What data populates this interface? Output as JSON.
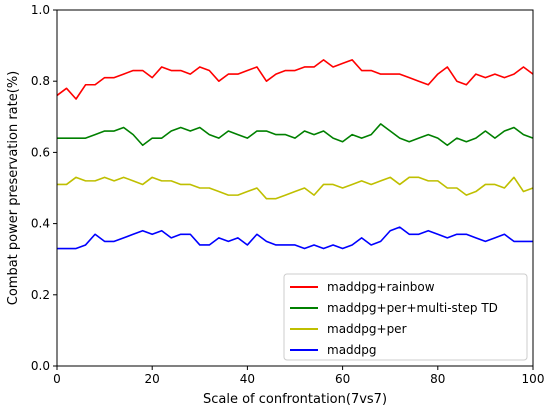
{
  "chart_data": {
    "type": "line",
    "title": "",
    "xlabel": "Scale of confrontation(7vs7)",
    "ylabel": "Combat power preservation rate(%)",
    "xlim": [
      0,
      100
    ],
    "ylim": [
      0,
      1
    ],
    "x_ticks": [
      "0",
      "20",
      "40",
      "60",
      "80",
      "100"
    ],
    "y_ticks": [
      "0.0",
      "0.2",
      "0.4",
      "0.6",
      "0.8",
      "1.0"
    ],
    "grid": false,
    "legend_position": "lower-right",
    "x": [
      0,
      2,
      4,
      6,
      8,
      10,
      12,
      14,
      16,
      18,
      20,
      22,
      24,
      26,
      28,
      30,
      32,
      34,
      36,
      38,
      40,
      42,
      44,
      46,
      48,
      50,
      52,
      54,
      56,
      58,
      60,
      62,
      64,
      66,
      68,
      70,
      72,
      74,
      76,
      78,
      80,
      82,
      84,
      86,
      88,
      90,
      92,
      94,
      96,
      98,
      100
    ],
    "series": [
      {
        "name": "maddpg+rainbow",
        "color": "#ff0000",
        "values": [
          0.76,
          0.78,
          0.75,
          0.79,
          0.79,
          0.81,
          0.81,
          0.82,
          0.83,
          0.83,
          0.81,
          0.84,
          0.83,
          0.83,
          0.82,
          0.84,
          0.83,
          0.8,
          0.82,
          0.82,
          0.83,
          0.84,
          0.8,
          0.82,
          0.83,
          0.83,
          0.84,
          0.84,
          0.86,
          0.84,
          0.85,
          0.86,
          0.83,
          0.83,
          0.82,
          0.82,
          0.82,
          0.81,
          0.8,
          0.79,
          0.82,
          0.84,
          0.8,
          0.79,
          0.82,
          0.81,
          0.82,
          0.81,
          0.82,
          0.84,
          0.82
        ]
      },
      {
        "name": "maddpg+per+multi-step TD",
        "color": "#008000",
        "values": [
          0.64,
          0.64,
          0.64,
          0.64,
          0.65,
          0.66,
          0.66,
          0.67,
          0.65,
          0.62,
          0.64,
          0.64,
          0.66,
          0.67,
          0.66,
          0.67,
          0.65,
          0.64,
          0.66,
          0.65,
          0.64,
          0.66,
          0.66,
          0.65,
          0.65,
          0.64,
          0.66,
          0.65,
          0.66,
          0.64,
          0.63,
          0.65,
          0.64,
          0.65,
          0.68,
          0.66,
          0.64,
          0.63,
          0.64,
          0.65,
          0.64,
          0.62,
          0.64,
          0.63,
          0.64,
          0.66,
          0.64,
          0.66,
          0.67,
          0.65,
          0.64
        ]
      },
      {
        "name": "maddpg+per",
        "color": "#bfbf00",
        "values": [
          0.51,
          0.51,
          0.53,
          0.52,
          0.52,
          0.53,
          0.52,
          0.53,
          0.52,
          0.51,
          0.53,
          0.52,
          0.52,
          0.51,
          0.51,
          0.5,
          0.5,
          0.49,
          0.48,
          0.48,
          0.49,
          0.5,
          0.47,
          0.47,
          0.48,
          0.49,
          0.5,
          0.48,
          0.51,
          0.51,
          0.5,
          0.51,
          0.52,
          0.51,
          0.52,
          0.53,
          0.51,
          0.53,
          0.53,
          0.52,
          0.52,
          0.5,
          0.5,
          0.48,
          0.49,
          0.51,
          0.51,
          0.5,
          0.53,
          0.49,
          0.5
        ]
      },
      {
        "name": "maddpg",
        "color": "#0000ff",
        "values": [
          0.33,
          0.33,
          0.33,
          0.34,
          0.37,
          0.35,
          0.35,
          0.36,
          0.37,
          0.38,
          0.37,
          0.38,
          0.36,
          0.37,
          0.37,
          0.34,
          0.34,
          0.36,
          0.35,
          0.36,
          0.34,
          0.37,
          0.35,
          0.34,
          0.34,
          0.34,
          0.33,
          0.34,
          0.33,
          0.34,
          0.33,
          0.34,
          0.36,
          0.34,
          0.35,
          0.38,
          0.39,
          0.37,
          0.37,
          0.38,
          0.37,
          0.36,
          0.37,
          0.37,
          0.36,
          0.35,
          0.36,
          0.37,
          0.35,
          0.35,
          0.35
        ]
      }
    ]
  }
}
